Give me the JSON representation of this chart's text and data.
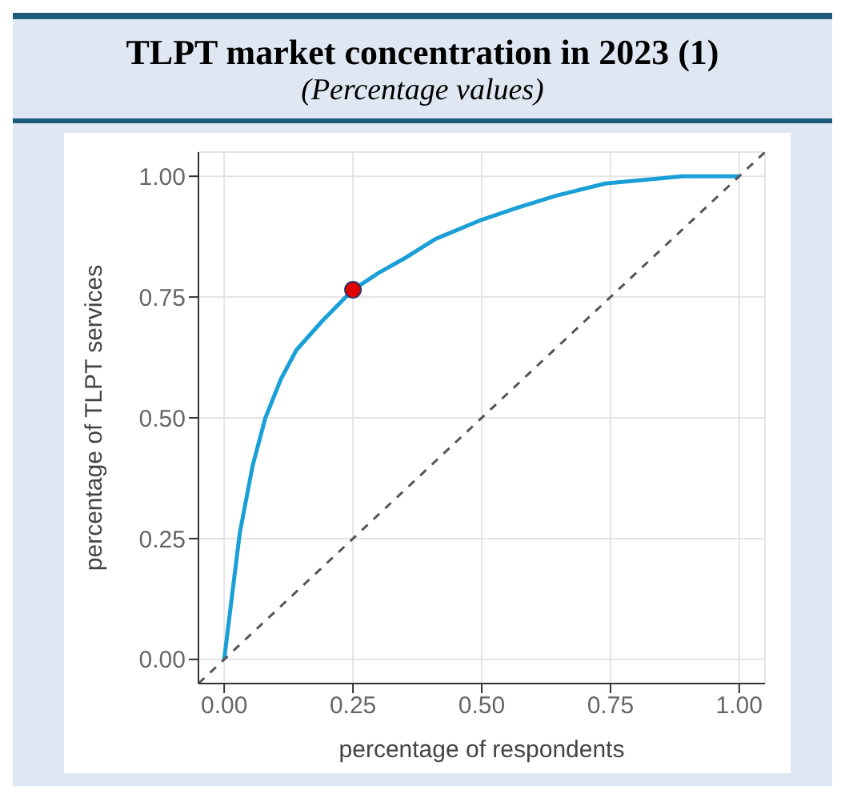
{
  "chart_data": {
    "type": "line",
    "title": "TLPT market concentration in 2023 (1)",
    "subtitle": "(Percentage values)",
    "xlabel": "percentage of respondents",
    "ylabel": "percentage of TLPT services",
    "series": [
      {
        "color": "#1a9fd6",
        "x": [
          0,
          0.03,
          0.055,
          0.08,
          0.11,
          0.14,
          0.19,
          0.25,
          0.3,
          0.35,
          0.41,
          0.5,
          0.57,
          0.645,
          0.74,
          0.89,
          1
        ],
        "values": [
          0,
          0.26,
          0.4,
          0.5,
          0.58,
          0.64,
          0.7,
          0.765,
          0.8,
          0.83,
          0.87,
          0.91,
          0.935,
          0.96,
          0.985,
          1,
          1
        ]
      },
      {
        "color": "#555555",
        "line_style": "dashed",
        "x": [
          -0.05,
          1.05
        ],
        "values": [
          -0.05,
          1.05
        ]
      },
      {
        "type": "scatter",
        "color": "#e00000",
        "x": [
          0.25
        ],
        "values": [
          0.765
        ]
      }
    ],
    "xlim": [
      -0.05,
      1.05
    ],
    "ylim": [
      -0.05,
      1.05
    ],
    "xticks": [
      {
        "value": 0,
        "label": "0.00"
      },
      0.25,
      {
        "value": 0.5,
        "label": "0.50"
      },
      0.75,
      {
        "value": 1,
        "label": "1.00"
      }
    ],
    "yticks": [
      {
        "value": 0,
        "label": "0.00"
      },
      0.25,
      {
        "value": 0.5,
        "label": "0.50"
      },
      0.75,
      {
        "value": 1,
        "label": "1.00"
      }
    ],
    "grid": true
  }
}
